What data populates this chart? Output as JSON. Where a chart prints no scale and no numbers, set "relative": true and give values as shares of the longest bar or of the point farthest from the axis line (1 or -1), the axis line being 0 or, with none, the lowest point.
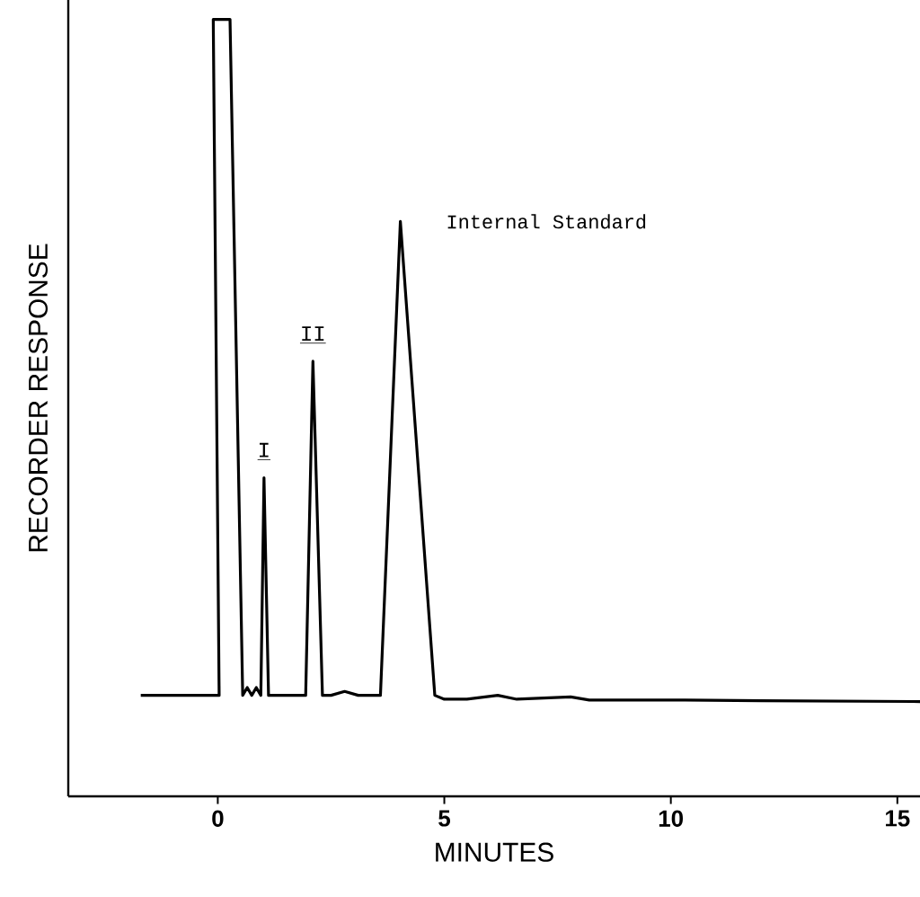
{
  "chart_data": {
    "type": "line",
    "relative": true,
    "xlabel": "MINUTES",
    "ylabel": "RECORDER RESPONSE",
    "xlim": [
      -3.3,
      15.5
    ],
    "xticks": [
      0,
      5,
      10,
      15
    ],
    "tick_labels": "x",
    "grid": false,
    "marker": "none",
    "line_style": "solid",
    "series": [
      {
        "color": "#000000",
        "x": [
          -1.7,
          0.03,
          -0.1,
          0.27,
          0.55,
          0.65,
          0.75,
          0.85,
          0.95,
          1.02,
          1.12,
          1.3,
          1.6,
          1.94,
          2.1,
          2.31,
          2.5,
          2.8,
          3.1,
          3.59,
          4.03,
          4.79,
          5.0,
          5.5,
          6.18,
          6.6,
          7.79,
          8.2,
          10,
          12,
          15.5
        ],
        "values": [
          0.13,
          0.13,
          1.0,
          1.0,
          0.13,
          0.14,
          0.13,
          0.14,
          0.13,
          0.41,
          0.13,
          0.13,
          0.13,
          0.13,
          0.56,
          0.13,
          0.13,
          0.135,
          0.13,
          0.13,
          0.74,
          0.13,
          0.125,
          0.125,
          0.13,
          0.125,
          0.128,
          0.124,
          0.124,
          0.123,
          0.122
        ]
      }
    ],
    "annotations": [
      {
        "text": "I",
        "x": 1.02,
        "y": 0.41
      },
      {
        "text": "II",
        "x": 2.1,
        "y": 0.56
      },
      {
        "text": "Internal Standard",
        "x": 4.03,
        "y": 0.74
      }
    ]
  }
}
